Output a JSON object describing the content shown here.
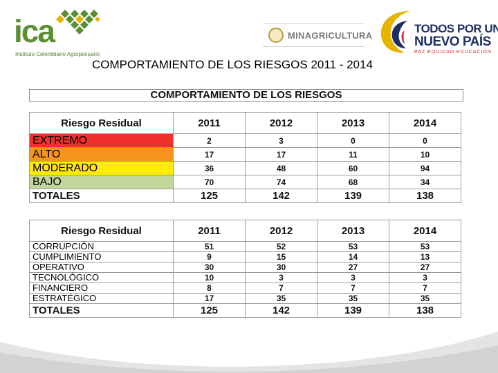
{
  "header": {
    "ica_word": "ica",
    "ica_subtitle": "Instituto Colombiano Agropecuario",
    "minagri_label": "MINAGRICULTURA",
    "tpunp_line1": "TODOS POR UN",
    "tpunp_line2": "NUEVO PAÍS",
    "tpunp_line3": "PAZ  EQUIDAD  EDUCACIÓN",
    "title": "COMPORTAMIENTO DE LOS RIESGOS 2011 - 2014"
  },
  "table1": {
    "banner": "COMPORTAMIENTO DE LOS RIESGOS",
    "header": [
      "Riesgo Residual",
      "2011",
      "2012",
      "2013",
      "2014"
    ],
    "rows": [
      {
        "label": "EXTREMO",
        "values": [
          "2",
          "3",
          "0",
          "0"
        ],
        "color": "#f0302a"
      },
      {
        "label": "ALTO",
        "values": [
          "17",
          "17",
          "11",
          "10"
        ],
        "color": "#f7941d"
      },
      {
        "label": "MODERADO",
        "values": [
          "36",
          "48",
          "60",
          "94"
        ],
        "color": "#ffec00"
      },
      {
        "label": "BAJO",
        "values": [
          "70",
          "74",
          "68",
          "34"
        ],
        "color": "#c4d79b"
      }
    ],
    "totals": {
      "label": "TOTALES",
      "values": [
        "125",
        "142",
        "139",
        "138"
      ]
    }
  },
  "table2": {
    "header": [
      "Riesgo Residual",
      "2011",
      "2012",
      "2013",
      "2014"
    ],
    "rows": [
      {
        "label": "CORRUPCIÓN",
        "values": [
          "51",
          "52",
          "53",
          "53"
        ]
      },
      {
        "label": "CUMPLIMIENTO",
        "values": [
          "9",
          "15",
          "14",
          "13"
        ]
      },
      {
        "label": "OPERATIVO",
        "values": [
          "30",
          "30",
          "27",
          "27"
        ]
      },
      {
        "label": "TECNOLÓGICO",
        "values": [
          "10",
          "3",
          "3",
          "3"
        ]
      },
      {
        "label": "FINANCIERO",
        "values": [
          "8",
          "7",
          "7",
          "7"
        ]
      },
      {
        "label": "ESTRATÉGICO",
        "values": [
          "17",
          "35",
          "35",
          "35"
        ]
      }
    ],
    "totals": {
      "label": "TOTALES",
      "values": [
        "125",
        "142",
        "139",
        "138"
      ]
    }
  },
  "colors": {
    "ica_green": "#5a8f32",
    "ica_yellow": "#e3b500",
    "tpunp_blue": "#1f2f66",
    "tpunp_red": "#d8232a"
  },
  "icons": [
    "ica-diamond-pattern-icon",
    "colombia-seal-icon",
    "todos-por-un-nuevo-pais-mark-icon"
  ]
}
